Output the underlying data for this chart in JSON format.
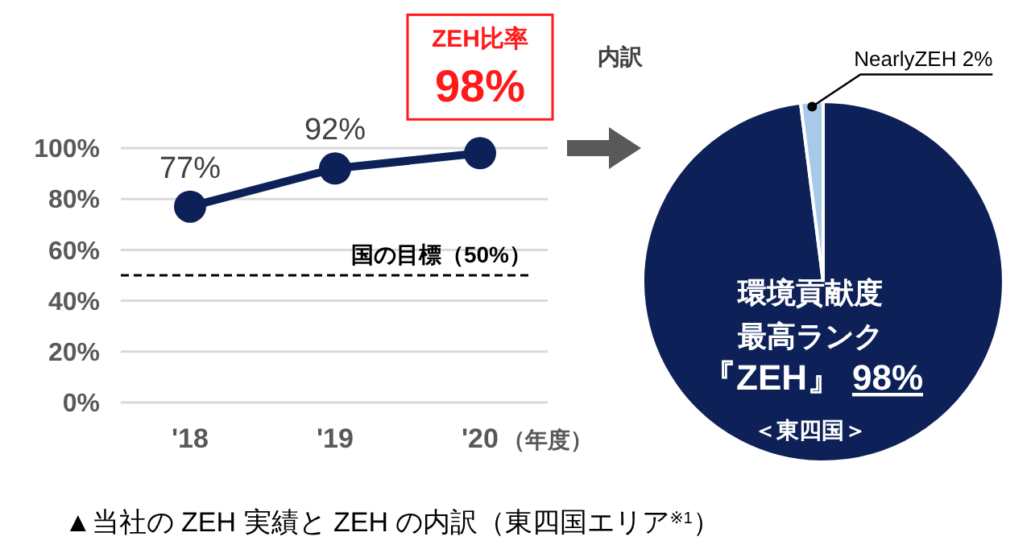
{
  "chart_data": [
    {
      "type": "line",
      "categories": [
        "'18",
        "'19",
        "'20"
      ],
      "xlabel": "（年度）",
      "series": [
        {
          "color": "#0d2158",
          "values": [
            77,
            92,
            98
          ],
          "value_labels": [
            "77%",
            "92%",
            null
          ]
        }
      ],
      "ylim": [
        0,
        100
      ],
      "yticks": [
        {
          "value": 0,
          "label": "0%"
        },
        {
          "value": 20,
          "label": "20%"
        },
        {
          "value": 40,
          "label": "40%"
        },
        {
          "value": 60,
          "label": "60%"
        },
        {
          "value": 80,
          "label": "80%"
        },
        {
          "value": 100,
          "label": "100%"
        }
      ],
      "grid": "y",
      "marker": "circle",
      "ref_lines": [
        {
          "axis": "y",
          "value": 50,
          "label": "国の目標（50%）",
          "color": "#000000",
          "line_style": "dashed"
        }
      ],
      "annotations": [
        {
          "text": "ZEH比率\n98%",
          "x": "'20",
          "y": 98
        },
        "▲当社の ZEH 実績と ZEH の内訳（東四国エリア$^{※1}$）"
      ]
    },
    {
      "type": "pie",
      "title": "内訳",
      "categories": [
        "環境貢献度最高ランク『ZEH』",
        "NearlyZEH"
      ],
      "values": [
        98,
        2
      ],
      "colors": [
        "#0d2158",
        "#a9c9e8"
      ],
      "value_labels": [
        "98%",
        "2%"
      ],
      "annotations": [
        "＜東四国＞"
      ]
    }
  ]
}
